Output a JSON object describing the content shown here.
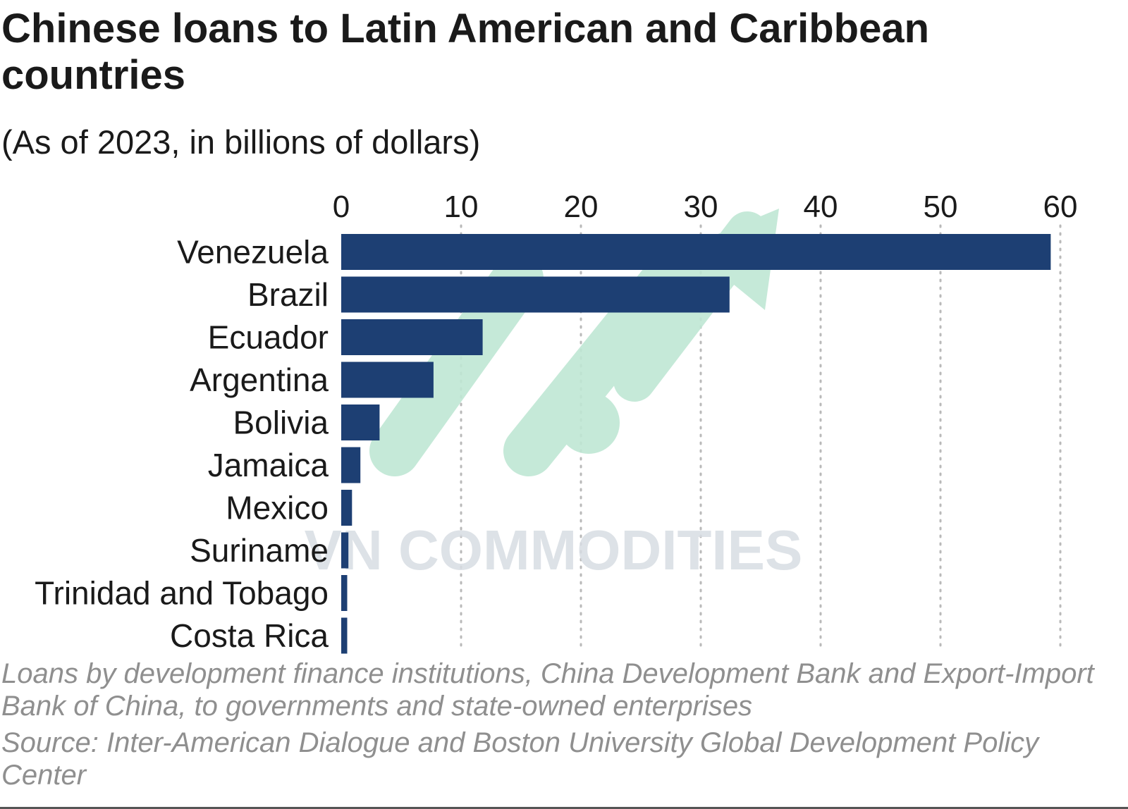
{
  "chart_data": {
    "type": "bar",
    "orientation": "horizontal",
    "title": "Chinese loans to Latin American and Caribbean countries",
    "subtitle": "(As of 2023, in billions of dollars)",
    "categories": [
      "Venezuela",
      "Brazil",
      "Ecuador",
      "Argentina",
      "Bolivia",
      "Jamaica",
      "Mexico",
      "Suriname",
      "Trinidad and Tobago",
      "Costa Rica"
    ],
    "values": [
      59.2,
      32.4,
      11.8,
      7.7,
      3.2,
      1.6,
      0.9,
      0.6,
      0.5,
      0.5
    ],
    "xlim": [
      0,
      60
    ],
    "xticks": [
      0,
      10,
      20,
      30,
      40,
      50,
      60
    ],
    "xaxis_position": "top",
    "grid": "vertical dotted",
    "legend": "none",
    "bar_color": "#1d3f73",
    "note": "Loans by development finance institutions, China Development Bank and Export-Import Bank of China, to governments and state-owned enterprises",
    "source": "Source: Inter-American Dialogue and Boston University Global Development Policy Center"
  },
  "watermark": {
    "text": "VN COMMODITIES",
    "arrow_color": "#bfe7d4",
    "text_color": "#d8dde3"
  },
  "colors": {
    "text": "#1a1a1a",
    "footnote": "#8f8f8f",
    "grid": "#b9b9b9"
  }
}
